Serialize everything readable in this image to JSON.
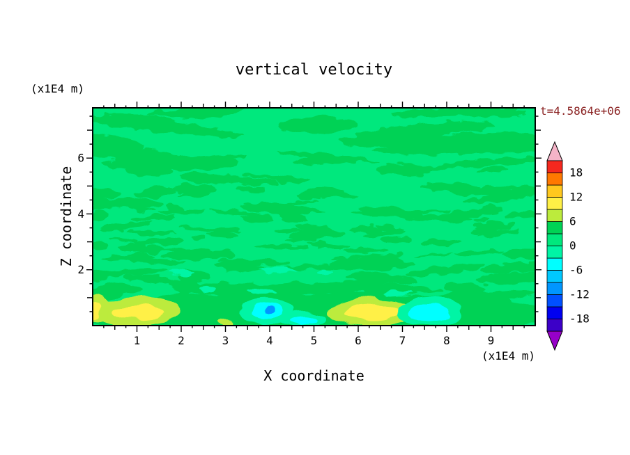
{
  "figure": {
    "title": "vertical velocity",
    "timestamp": "t=4.5864e+06",
    "timestamp_color": "#8B2323",
    "x_axis": {
      "label": "X coordinate",
      "unit": "(x1E4 m)",
      "min": 0,
      "max": 10,
      "major_ticks": [
        1,
        2,
        3,
        4,
        5,
        6,
        7,
        8,
        9
      ],
      "minor_step": 0.25
    },
    "z_axis": {
      "label": "Z coordinate",
      "unit": "(x1E4 m)",
      "min": 0,
      "max": 7.8,
      "major_ticks": [
        2,
        4,
        6
      ],
      "minor_step": 0.5
    }
  },
  "chart_data": {
    "type": "heatmap",
    "title": "vertical velocity",
    "xlabel": "X coordinate (x1E4 m)",
    "ylabel": "Z coordinate (x1E4 m)",
    "time_label": "t=4.5864e+06",
    "x_range": [
      0,
      10
    ],
    "z_range": [
      0,
      7.8
    ],
    "contour_interval": 3,
    "levels": [
      -21,
      -18,
      -15,
      -12,
      -9,
      -6,
      -3,
      0,
      3,
      6,
      9,
      12,
      15,
      18,
      21
    ],
    "colorbar": {
      "tick_labels": [
        18,
        12,
        6,
        0,
        -6,
        -12,
        -18
      ],
      "segment_colors_bottom_to_top": [
        "#3C00C8",
        "#0000F0",
        "#0050FF",
        "#0096FF",
        "#00C8FF",
        "#00FFFF",
        "#00F5A5",
        "#00E87D",
        "#00D255",
        "#BCEB3C",
        "#FFF046",
        "#FFC81E",
        "#FF7800",
        "#F5281E"
      ],
      "cap_bottom_color": "#9600C8",
      "cap_top_color": "#F5B4C8"
    },
    "palette": {
      "background": "#00E87D",
      "patch": "#00D255",
      "light_green": "#00F5A5",
      "cyan": "#00FFFF",
      "blue": "#0096FF",
      "yellow_green": "#BCEB3C",
      "yellow": "#FFF046"
    },
    "dominant_band": [
      0,
      3
    ],
    "features": [
      {
        "x": 5.0,
        "z": 0.38,
        "rx": 5.4,
        "rz": 0.78,
        "color": "patch"
      },
      {
        "x": 8.6,
        "z": 0.8,
        "rx": 0.9,
        "rz": 0.45,
        "color": "patch"
      },
      {
        "x": 2.2,
        "z": 0.85,
        "rx": 0.8,
        "rz": 0.35,
        "color": "patch"
      },
      {
        "x": 1.0,
        "z": 0.5,
        "rx": 0.98,
        "rz": 0.5,
        "color": "yellow_green"
      },
      {
        "x": 1.05,
        "z": 0.46,
        "rx": 0.55,
        "rz": 0.27,
        "color": "yellow"
      },
      {
        "x": 0.08,
        "z": 0.62,
        "rx": 0.33,
        "rz": 0.5,
        "color": "yellow_green"
      },
      {
        "x": 0.0,
        "z": 0.55,
        "rx": 0.16,
        "rz": 0.32,
        "color": "yellow"
      },
      {
        "x": 3.0,
        "z": 0.12,
        "rx": 0.18,
        "rz": 0.1,
        "color": "yellow_green"
      },
      {
        "x": 6.35,
        "z": 0.5,
        "rx": 1.02,
        "rz": 0.5,
        "color": "yellow_green"
      },
      {
        "x": 6.33,
        "z": 0.47,
        "rx": 0.62,
        "rz": 0.3,
        "color": "yellow"
      },
      {
        "x": 3.95,
        "z": 0.52,
        "rx": 0.6,
        "rz": 0.45,
        "color": "light_green"
      },
      {
        "x": 3.95,
        "z": 0.5,
        "rx": 0.34,
        "rz": 0.27,
        "color": "cyan"
      },
      {
        "x": 3.96,
        "z": 0.52,
        "rx": 0.12,
        "rz": 0.1,
        "color": "blue"
      },
      {
        "x": 4.78,
        "z": 0.24,
        "rx": 0.55,
        "rz": 0.28,
        "color": "light_green"
      },
      {
        "x": 4.78,
        "z": 0.2,
        "rx": 0.33,
        "rz": 0.17,
        "color": "cyan"
      },
      {
        "x": 7.62,
        "z": 0.5,
        "rx": 0.72,
        "rz": 0.55,
        "color": "light_green"
      },
      {
        "x": 7.6,
        "z": 0.47,
        "rx": 0.45,
        "rz": 0.34,
        "color": "cyan"
      }
    ],
    "texture": {
      "seed": 20,
      "regions": [
        {
          "count": 22,
          "x": [
            0,
            10
          ],
          "z": [
            5.4,
            7.7
          ],
          "rx": [
            0.5,
            1.7
          ],
          "rz": [
            0.1,
            0.3
          ],
          "color": "patch"
        },
        {
          "count": 40,
          "x": [
            0,
            10
          ],
          "z": [
            4.0,
            5.6
          ],
          "rx": [
            0.2,
            0.8
          ],
          "rz": [
            0.06,
            0.18
          ],
          "color": "patch"
        },
        {
          "count": 60,
          "x": [
            0,
            10
          ],
          "z": [
            2.4,
            4.2
          ],
          "rx": [
            0.15,
            0.6
          ],
          "rz": [
            0.05,
            0.16
          ],
          "color": "patch"
        },
        {
          "count": 30,
          "x": [
            0,
            10
          ],
          "z": [
            1.0,
            2.6
          ],
          "rx": [
            0.3,
            1.0
          ],
          "rz": [
            0.08,
            0.22
          ],
          "color": "patch"
        },
        {
          "count": 10,
          "x": [
            0,
            10
          ],
          "z": [
            0.8,
            1.4
          ],
          "rx": [
            0.4,
            1.2
          ],
          "rz": [
            0.1,
            0.25
          ],
          "color": "patch"
        },
        {
          "count": 10,
          "x": [
            0,
            10
          ],
          "z": [
            0.8,
            2.0
          ],
          "rx": [
            0.15,
            0.45
          ],
          "rz": [
            0.05,
            0.14
          ],
          "color": "light_green"
        }
      ]
    }
  }
}
